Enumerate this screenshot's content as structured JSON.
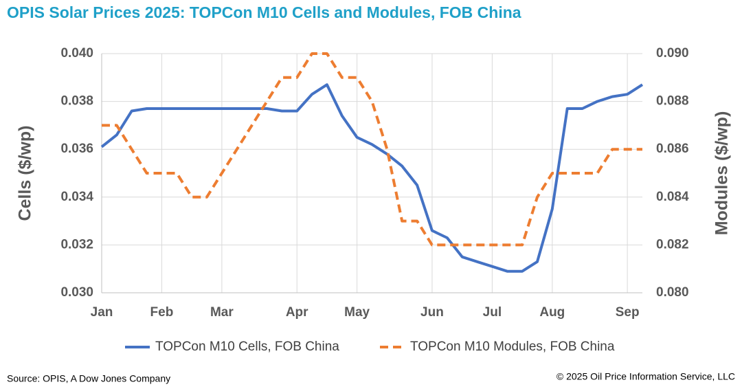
{
  "chart_data": {
    "type": "line",
    "title": "OPIS Solar Prices 2025: TOPCon M10 Cells and Modules, FOB China",
    "y_label": "Cells ($/wp)",
    "y2_label": "Modules ($/wp)",
    "source": "Source: OPIS, A Dow Jones Company",
    "copyright": "© 2025 Oil Price Information Service, LLC",
    "categories": [
      "Jan",
      null,
      null,
      null,
      "Feb",
      null,
      null,
      null,
      "Mar",
      null,
      null,
      null,
      null,
      "Apr",
      null,
      null,
      null,
      "May",
      null,
      null,
      null,
      null,
      "Jun",
      null,
      null,
      null,
      "Jul",
      null,
      null,
      null,
      "Aug",
      null,
      null,
      null,
      null,
      "Sep",
      null
    ],
    "series": [
      {
        "name": "TOPCon M10 Cells, FOB China",
        "color": "#4472c4",
        "dashed": false,
        "axis": "y",
        "values": [
          0.0361,
          0.0366,
          0.0376,
          0.0377,
          0.0377,
          0.0377,
          0.0377,
          0.0377,
          0.0377,
          0.0377,
          0.0377,
          0.0377,
          0.0376,
          0.0376,
          0.0383,
          0.0387,
          0.0374,
          0.0365,
          0.0362,
          0.0358,
          0.0353,
          0.0345,
          0.0326,
          0.0323,
          0.0315,
          0.0313,
          0.0311,
          0.0309,
          0.0309,
          0.0313,
          0.0335,
          0.0377,
          0.0377,
          0.038,
          0.0382,
          0.0383,
          0.0387
        ]
      },
      {
        "name": "TOPCon M10 Modules, FOB China",
        "color": "#ed7d31",
        "dashed": true,
        "axis": "y2",
        "values": [
          0.087,
          0.087,
          0.086,
          0.085,
          0.085,
          0.085,
          0.084,
          0.084,
          0.085,
          0.086,
          0.087,
          0.088,
          0.089,
          0.089,
          0.09,
          0.09,
          0.089,
          0.089,
          0.088,
          0.086,
          0.083,
          0.083,
          0.082,
          0.082,
          0.082,
          0.082,
          0.082,
          0.082,
          0.082,
          0.084,
          0.085,
          0.085,
          0.085,
          0.085,
          0.086,
          0.086,
          0.086
        ]
      }
    ],
    "ylim": [
      0.03,
      0.04
    ],
    "yticks": [
      {
        "value": 0.03,
        "label": "0.030"
      },
      0.032,
      0.034,
      0.036,
      0.038,
      {
        "value": 0.04,
        "label": "0.040"
      }
    ],
    "y2lim": [
      0.08,
      0.09
    ],
    "y2ticks": [
      {
        "value": 0.08,
        "label": "0.080"
      },
      0.082,
      0.084,
      0.086,
      0.088,
      {
        "value": 0.09,
        "label": "0.090"
      }
    ],
    "grid": true
  }
}
